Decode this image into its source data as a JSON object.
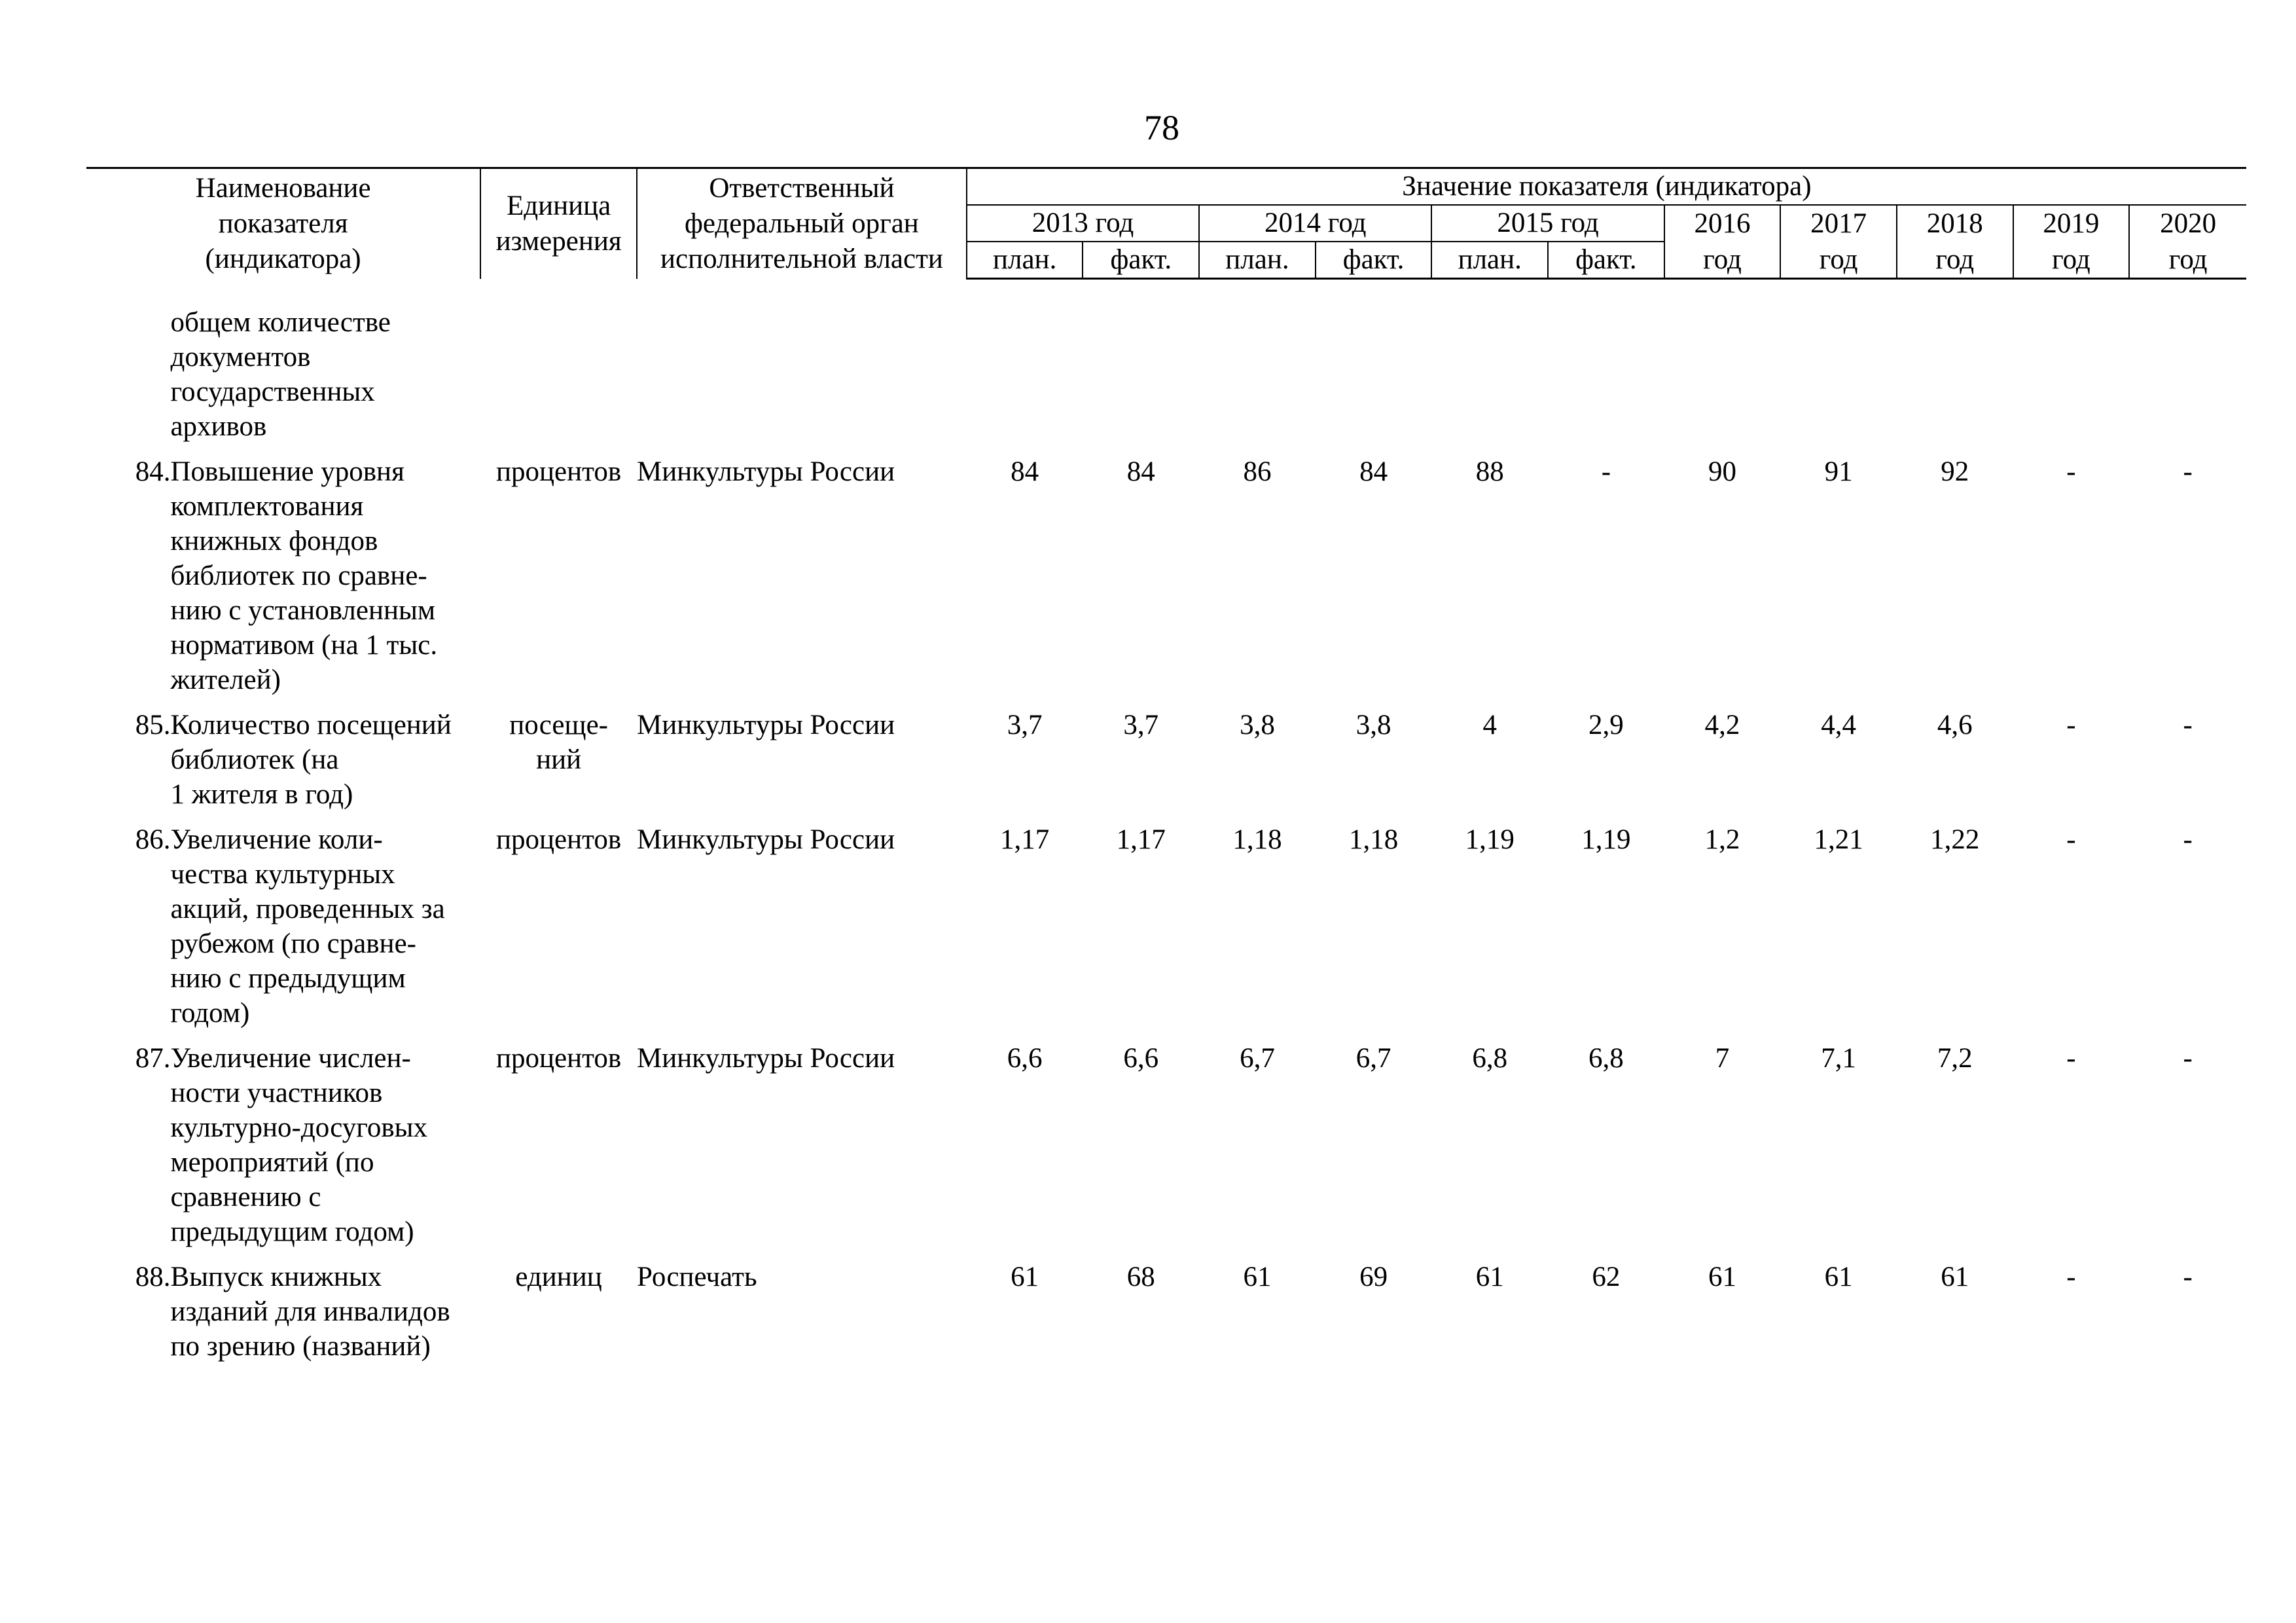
{
  "page_number": "78",
  "header": {
    "name_col": [
      "Наименование",
      "показателя",
      "(индикатора)"
    ],
    "unit_col": [
      "Единица",
      "измерения"
    ],
    "org_col": [
      "Ответственный",
      "федеральный орган",
      "исполнительной власти"
    ],
    "values_title": "Значение показателя (индикатора)",
    "years_split": [
      "2013 год",
      "2014 год",
      "2015 год"
    ],
    "years_single": [
      "2016",
      "2017",
      "2018",
      "2019",
      "2020"
    ],
    "plan_label": "план.",
    "fact_label": "факт.",
    "year_word": "год"
  },
  "rows": [
    {
      "num": "",
      "name_lines": [
        "общем количестве",
        "документов",
        "государственных",
        "архивов"
      ],
      "unit_lines": [],
      "org": "",
      "values": [
        "",
        "",
        "",
        "",
        "",
        "",
        "",
        "",
        "",
        "",
        ""
      ]
    },
    {
      "num": "84.",
      "name_lines": [
        "Повышение уровня",
        "комплектования",
        "книжных фондов",
        "библиотек по сравне-",
        "нию с установленным",
        "нормативом (на 1 тыс.",
        "жителей)"
      ],
      "unit_lines": [
        "процентов"
      ],
      "org": "Минкультуры России",
      "values": [
        "84",
        "84",
        "86",
        "84",
        "88",
        "-",
        "90",
        "91",
        "92",
        "-",
        "-"
      ]
    },
    {
      "num": "85.",
      "name_lines": [
        "Количество посещений",
        "библиотек (на",
        "1 жителя в год)"
      ],
      "unit_lines": [
        "посеще-",
        "ний"
      ],
      "org": "Минкультуры России",
      "values": [
        "3,7",
        "3,7",
        "3,8",
        "3,8",
        "4",
        "2,9",
        "4,2",
        "4,4",
        "4,6",
        "-",
        "-"
      ]
    },
    {
      "num": "86.",
      "name_lines": [
        "Увеличение коли-",
        "чества культурных",
        "акций, проведенных за",
        "рубежом (по сравне-",
        "нию с предыдущим",
        "годом)"
      ],
      "unit_lines": [
        "процентов"
      ],
      "org": "Минкультуры России",
      "values": [
        "1,17",
        "1,17",
        "1,18",
        "1,18",
        "1,19",
        "1,19",
        "1,2",
        "1,21",
        "1,22",
        "-",
        "-"
      ]
    },
    {
      "num": "87.",
      "name_lines": [
        "Увеличение числен-",
        "ности участников",
        "культурно-досуговых",
        "мероприятий (по",
        "сравнению с",
        "предыдущим годом)"
      ],
      "unit_lines": [
        "процентов"
      ],
      "org": "Минкультуры России",
      "values": [
        "6,6",
        "6,6",
        "6,7",
        "6,7",
        "6,8",
        "6,8",
        "7",
        "7,1",
        "7,2",
        "-",
        "-"
      ]
    },
    {
      "num": "88.",
      "name_lines": [
        "Выпуск книжных",
        "изданий для инвалидов",
        "по зрению (названий)"
      ],
      "unit_lines": [
        "единиц"
      ],
      "org": "Роспечать",
      "values": [
        "61",
        "68",
        "61",
        "69",
        "61",
        "62",
        "61",
        "61",
        "61",
        "-",
        "-"
      ]
    }
  ]
}
